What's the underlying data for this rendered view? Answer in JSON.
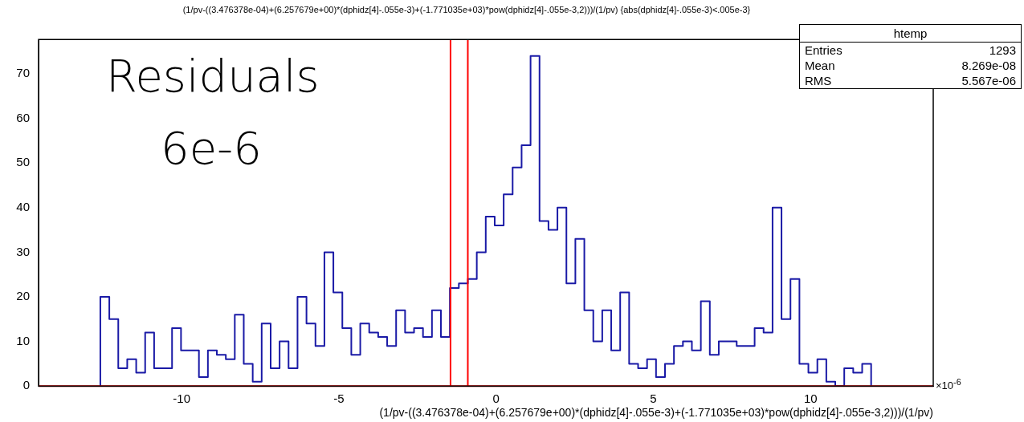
{
  "chart_data": {
    "type": "histogram",
    "title": "(1/pv-((3.476378e-04)+(6.257679e+00)*(dphidz[4]-.055e-3)+(-1.771035e+03)*pow(dphidz[4]-.055e-3,2)))/(1/pv) {abs(dphidz[4]-.055e-3)<.005e-3}",
    "xlabel": "(1/pv-((3.476378e-04)+(6.257679e+00)*(dphidz[4]-.055e-3)+(-1.771035e+03)*pow(dphidz[4]-.055e-3,2)))/(1/pv)",
    "bins": [
      -12.585,
      -12.3,
      -12.015,
      -11.73,
      -11.445,
      -11.16,
      -10.875,
      -10.59,
      -10.305,
      -10.02,
      -9.735,
      -9.45,
      -9.165,
      -8.88,
      -8.595,
      -8.31,
      -8.025,
      -7.74,
      -7.455,
      -7.17,
      -6.885,
      -6.6,
      -6.315,
      -6.03,
      -5.745,
      -5.46,
      -5.175,
      -4.89,
      -4.605,
      -4.32,
      -4.035,
      -3.75,
      -3.465,
      -3.18,
      -2.895,
      -2.61,
      -2.325,
      -2.04,
      -1.755,
      -1.47,
      -1.185,
      -0.9,
      -0.615,
      -0.33,
      -0.045,
      0.24,
      0.525,
      0.81,
      1.095,
      1.38,
      1.665,
      1.95,
      2.235,
      2.52,
      2.805,
      3.09,
      3.375,
      3.66,
      3.945,
      4.23,
      4.515,
      4.8,
      5.085,
      5.37,
      5.655,
      5.94,
      6.225,
      6.51,
      6.795,
      7.08,
      7.365,
      7.65,
      7.935,
      8.22,
      8.505,
      8.79,
      9.075,
      9.36,
      9.645,
      9.93,
      10.215,
      10.5,
      10.785,
      11.07,
      11.355,
      11.64,
      11.925
    ],
    "values": [
      20,
      15,
      4,
      6,
      3,
      12,
      4,
      4,
      13,
      8,
      8,
      2,
      8,
      7,
      6,
      16,
      5,
      1,
      14,
      4,
      10,
      4,
      20,
      14,
      9,
      30,
      21,
      13,
      7,
      14,
      12,
      11,
      9,
      17,
      12,
      13,
      11,
      17,
      11,
      22,
      23,
      24,
      30,
      38,
      36,
      43,
      49,
      54,
      74,
      37,
      35,
      40,
      23,
      33,
      17,
      10,
      17,
      8,
      21,
      5,
      4,
      6,
      2,
      5,
      9,
      10,
      8,
      19,
      7,
      10,
      10,
      9,
      9,
      13,
      12,
      40,
      15,
      24,
      5,
      3,
      6,
      1,
      0,
      4,
      3,
      5
    ],
    "color": "#1a1aa6",
    "xlim": [
      -14.55,
      13.9
    ],
    "xticks": [
      -10,
      -5,
      0,
      5,
      10
    ],
    "ylim": [
      0,
      77.7
    ],
    "yticks": [
      0,
      10,
      20,
      30,
      40,
      50,
      60,
      70
    ],
    "grid": false,
    "legend": false,
    "ref_lines": [
      {
        "axis": "x",
        "value": -1.45,
        "color": "#ff0000"
      },
      {
        "axis": "x",
        "value": -0.9,
        "color": "#ff0000"
      },
      {
        "axis": "y",
        "value": 0,
        "color": "#ff0000"
      }
    ],
    "annotations": [
      "Residuals",
      "6e-6",
      "×10$^{-6}$",
      "htemp",
      "Entries",
      "1293",
      "Mean",
      "8.269e-08",
      "RMS",
      "5.567e-06"
    ]
  }
}
